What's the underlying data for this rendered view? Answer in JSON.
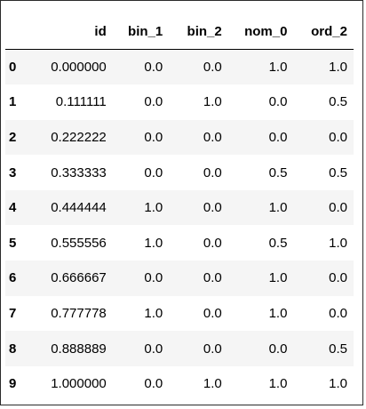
{
  "dataframe": {
    "columns": [
      "id",
      "bin_1",
      "bin_2",
      "nom_0",
      "ord_2"
    ],
    "rows": [
      {
        "index": "0",
        "cells": [
          "0.000000",
          "0.0",
          "0.0",
          "1.0",
          "1.0"
        ]
      },
      {
        "index": "1",
        "cells": [
          "0.111111",
          "0.0",
          "1.0",
          "0.0",
          "0.5"
        ]
      },
      {
        "index": "2",
        "cells": [
          "0.222222",
          "0.0",
          "0.0",
          "0.0",
          "0.0"
        ]
      },
      {
        "index": "3",
        "cells": [
          "0.333333",
          "0.0",
          "0.0",
          "0.5",
          "0.5"
        ]
      },
      {
        "index": "4",
        "cells": [
          "0.444444",
          "1.0",
          "0.0",
          "1.0",
          "0.0"
        ]
      },
      {
        "index": "5",
        "cells": [
          "0.555556",
          "1.0",
          "0.0",
          "0.5",
          "1.0"
        ]
      },
      {
        "index": "6",
        "cells": [
          "0.666667",
          "0.0",
          "0.0",
          "1.0",
          "0.0"
        ]
      },
      {
        "index": "7",
        "cells": [
          "0.777778",
          "1.0",
          "0.0",
          "1.0",
          "0.0"
        ]
      },
      {
        "index": "8",
        "cells": [
          "0.888889",
          "0.0",
          "0.0",
          "0.0",
          "0.5"
        ]
      },
      {
        "index": "9",
        "cells": [
          "1.000000",
          "0.0",
          "1.0",
          "1.0",
          "1.0"
        ]
      }
    ]
  },
  "colors": {
    "stripe": "#f5f5f5",
    "border": "#2b2b2b"
  }
}
